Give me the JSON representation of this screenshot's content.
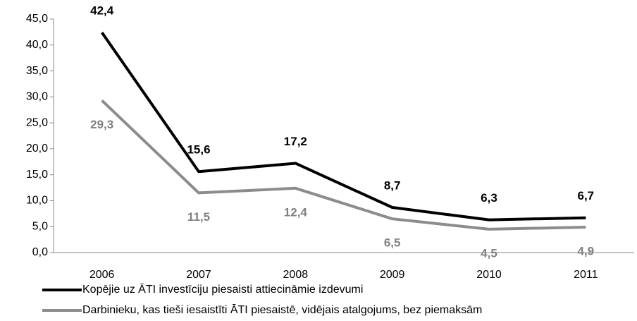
{
  "chart_data": {
    "type": "line",
    "categories": [
      "2006",
      "2007",
      "2008",
      "2009",
      "2010",
      "2011"
    ],
    "series": [
      {
        "name": "Kopējie uz ĀTI investīciju piesaisti attiecināmie izdevumi",
        "color": "#000000",
        "values": [
          42.4,
          15.6,
          17.2,
          8.7,
          6.3,
          6.7
        ],
        "value_labels": [
          "42,4",
          "15,6",
          "17,2",
          "8,7",
          "6,3",
          "6,7"
        ]
      },
      {
        "name": "Darbinieku, kas tieši iesaistīti ĀTI piesaistē, vidējais atalgojums, bez piemaksām",
        "color": "#8c8c8c",
        "values": [
          29.3,
          11.5,
          12.4,
          6.5,
          4.5,
          4.9
        ],
        "value_labels": [
          "29,3",
          "11,5",
          "12,4",
          "6,5",
          "4,5",
          "4,9"
        ]
      }
    ],
    "ylim": [
      0,
      45
    ],
    "yticks": [
      {
        "value": 0,
        "label": "0,0"
      },
      {
        "value": 5,
        "label": "5,0"
      },
      {
        "value": 10,
        "label": "10,0"
      },
      {
        "value": 15,
        "label": "15,0"
      },
      {
        "value": 20,
        "label": "20,0"
      },
      {
        "value": 25,
        "label": "25,0"
      },
      {
        "value": 30,
        "label": "30,0"
      },
      {
        "value": 35,
        "label": "35,0"
      },
      {
        "value": 40,
        "label": "40,0"
      },
      {
        "value": 45,
        "label": "45,0"
      }
    ]
  }
}
